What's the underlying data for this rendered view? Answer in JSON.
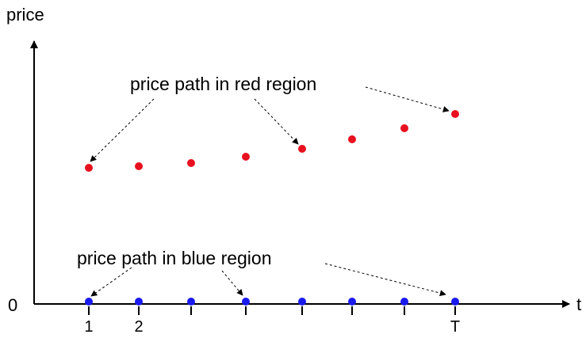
{
  "diagram": {
    "y_axis_label": "price",
    "x_axis_label": "t",
    "origin_label": "0",
    "red_annotation": "price path in red region",
    "blue_annotation": "price path in blue region",
    "tick_labels": [
      "1",
      "2",
      "",
      "",
      "",
      "",
      "",
      "T"
    ],
    "colors": {
      "red_points": "#e8101f",
      "blue_points": "#1a1aee",
      "axis": "#000000"
    },
    "red_path_points": 8,
    "blue_path_points": 8
  }
}
